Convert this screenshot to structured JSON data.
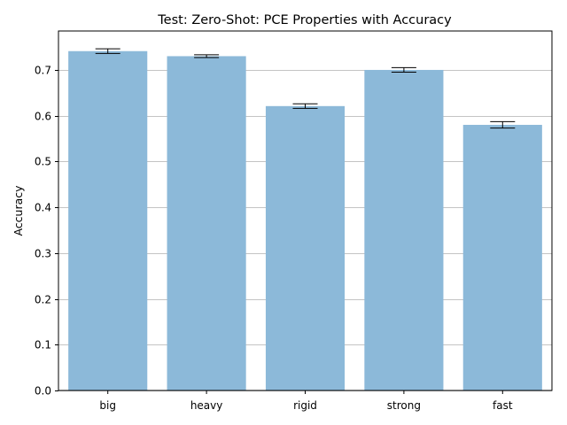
{
  "chart_data": {
    "type": "bar",
    "title": "Test: Zero-Shot: PCE Properties with Accuracy",
    "xlabel": "",
    "ylabel": "Accuracy",
    "categories": [
      "big",
      "heavy",
      "rigid",
      "strong",
      "fast"
    ],
    "values": [
      0.741,
      0.73,
      0.621,
      0.7,
      0.58
    ],
    "errors": [
      0.005,
      0.003,
      0.005,
      0.005,
      0.007
    ],
    "ylim": [
      0,
      0.785
    ],
    "yticks": [
      0.0,
      0.1,
      0.2,
      0.3,
      0.4,
      0.5,
      0.6,
      0.7
    ],
    "ytick_labels": [
      "0.0",
      "0.1",
      "0.2",
      "0.3",
      "0.4",
      "0.5",
      "0.6",
      "0.7"
    ],
    "grid": "y",
    "bar_color": "#8cb9d9",
    "grid_color": "#b0b0b0",
    "error_color": "#000000"
  }
}
